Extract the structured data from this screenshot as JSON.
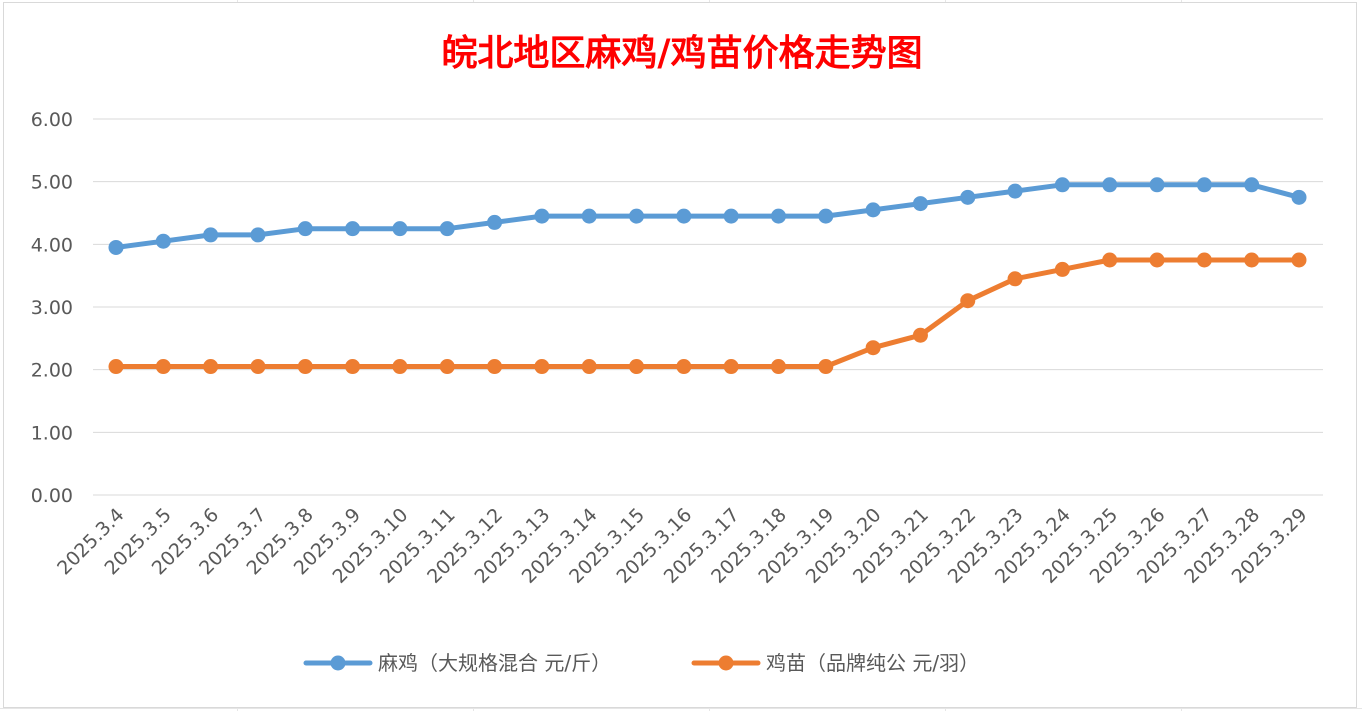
{
  "chart_data": {
    "type": "line",
    "title": "皖北地区麻鸡/鸡苗价格走势图",
    "xlabel": "",
    "ylabel": "",
    "categories": [
      "2025.3.4",
      "2025.3.5",
      "2025.3.6",
      "2025.3.7",
      "2025.3.8",
      "2025.3.9",
      "2025.3.10",
      "2025.3.11",
      "2025.3.12",
      "2025.3.13",
      "2025.3.14",
      "2025.3.15",
      "2025.3.16",
      "2025.3.17",
      "2025.3.18",
      "2025.3.19",
      "2025.3.20",
      "2025.3.21",
      "2025.3.22",
      "2025.3.23",
      "2025.3.24",
      "2025.3.25",
      "2025.3.26",
      "2025.3.27",
      "2025.3.28",
      "2025.3.29"
    ],
    "ylim": [
      0,
      6
    ],
    "yticks": [
      "0.00",
      "1.00",
      "2.00",
      "3.00",
      "4.00",
      "5.00",
      "6.00"
    ],
    "grid": true,
    "legend_position": "bottom",
    "series": [
      {
        "name": "麻鸡（大规格混合 元/斤）",
        "color": "#5b9bd5",
        "values": [
          3.95,
          4.05,
          4.15,
          4.15,
          4.25,
          4.25,
          4.25,
          4.25,
          4.35,
          4.45,
          4.45,
          4.45,
          4.45,
          4.45,
          4.45,
          4.45,
          4.55,
          4.65,
          4.75,
          4.85,
          4.95,
          4.95,
          4.95,
          4.95,
          4.95,
          4.75
        ]
      },
      {
        "name": "鸡苗（品牌纯公 元/羽）",
        "color": "#ed7d31",
        "values": [
          2.05,
          2.05,
          2.05,
          2.05,
          2.05,
          2.05,
          2.05,
          2.05,
          2.05,
          2.05,
          2.05,
          2.05,
          2.05,
          2.05,
          2.05,
          2.05,
          2.35,
          2.55,
          3.1,
          3.45,
          3.6,
          3.75,
          3.75,
          3.75,
          3.75,
          3.75
        ]
      }
    ]
  }
}
